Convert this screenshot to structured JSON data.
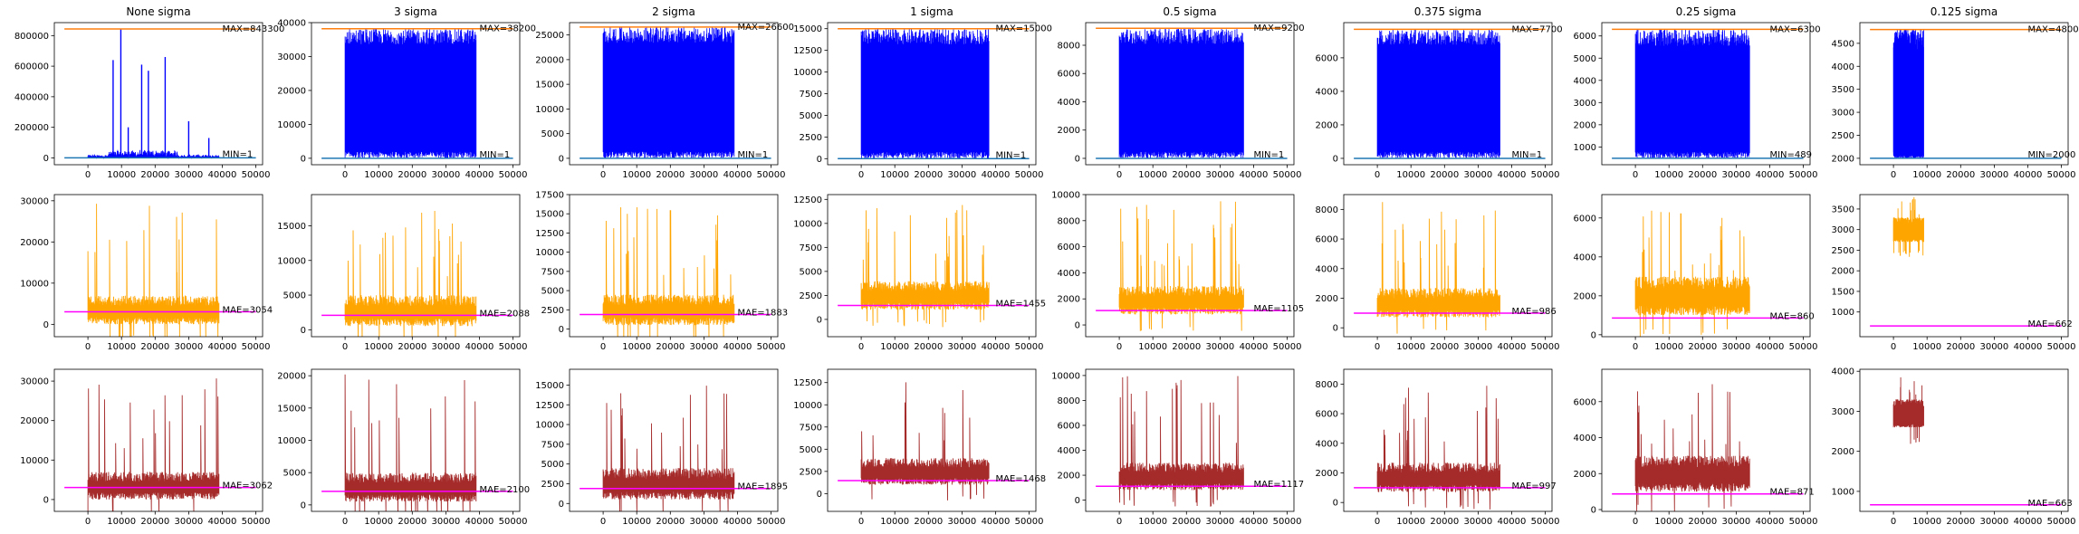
{
  "colors": {
    "row1_signal": "#0000ff",
    "row2_signal": "#ffa500",
    "row3_signal": "#a52a2a",
    "max_line": "#ff7f0e",
    "min_line": "#1f77b4",
    "mae_line": "#ff00ff"
  },
  "panels": [
    {
      "title": "None sigma",
      "n": 39000,
      "r1": {
        "ylim": [
          -45000,
          885000
        ],
        "yticks": [
          0,
          200000,
          400000,
          600000,
          800000
        ],
        "max": 843300,
        "min": 1,
        "max_label": "MAX=843300",
        "min_label": "MIN=1",
        "base": 15000,
        "noise": 15000,
        "spikes": [
          [
            7500,
            640000
          ],
          [
            9800,
            843300
          ],
          [
            12000,
            200000
          ],
          [
            16000,
            610000
          ],
          [
            18000,
            570000
          ],
          [
            23000,
            660000
          ],
          [
            30000,
            240000
          ],
          [
            36000,
            130000
          ]
        ]
      },
      "r2": {
        "ylim": [
          -3000,
          31500
        ],
        "yticks": [
          0,
          10000,
          20000,
          30000
        ],
        "mae": 3054,
        "mae_label": "MAE=3054",
        "low": 0,
        "high": 7000,
        "spikes": 30000
      },
      "r3": {
        "ylim": [
          -3000,
          33000
        ],
        "yticks": [
          0,
          10000,
          20000,
          30000
        ],
        "mae": 3062,
        "mae_label": "MAE=3062",
        "low": 0,
        "high": 7000,
        "spikes": 31500
      }
    },
    {
      "title": "3 sigma",
      "n": 39000,
      "r1": {
        "ylim": [
          -1900,
          40000
        ],
        "yticks": [
          0,
          10000,
          20000,
          30000,
          40000
        ],
        "max": 38200,
        "min": 1,
        "max_label": "MAX=38200",
        "min_label": "MIN=1",
        "base": 3000,
        "noise": 38200,
        "spikes": []
      },
      "r2": {
        "ylim": [
          -1000,
          19500
        ],
        "yticks": [
          0,
          5000,
          10000,
          15000
        ],
        "mae": 2088,
        "mae_label": "MAE=2088",
        "low": 500,
        "high": 5000,
        "spikes": 18500
      },
      "r3": {
        "ylim": [
          -1000,
          21000
        ],
        "yticks": [
          0,
          5000,
          10000,
          15000,
          20000
        ],
        "mae": 2100,
        "mae_label": "MAE=2100",
        "low": 500,
        "high": 5000,
        "spikes": 20500
      }
    },
    {
      "title": "2 sigma",
      "n": 39000,
      "r1": {
        "ylim": [
          -1300,
          27500
        ],
        "yticks": [
          0,
          5000,
          10000,
          15000,
          20000,
          25000
        ],
        "max": 26600,
        "min": 1,
        "max_label": "MAX=26600",
        "min_label": "MIN=1",
        "base": 3000,
        "noise": 26600,
        "spikes": []
      },
      "r2": {
        "ylim": [
          -1000,
          17500
        ],
        "yticks": [
          0,
          2500,
          5000,
          7500,
          10000,
          12500,
          15000,
          17500
        ],
        "mae": 1883,
        "mae_label": "MAE=1883",
        "low": 500,
        "high": 4500,
        "spikes": 16500
      },
      "r3": {
        "ylim": [
          -1000,
          17000
        ],
        "yticks": [
          0,
          2500,
          5000,
          7500,
          10000,
          12500,
          15000
        ],
        "mae": 1895,
        "mae_label": "MAE=1895",
        "low": 500,
        "high": 4500,
        "spikes": 16200
      }
    },
    {
      "title": "1 sigma",
      "n": 38000,
      "r1": {
        "ylim": [
          -700,
          15700
        ],
        "yticks": [
          0,
          2500,
          5000,
          7500,
          10000,
          12500,
          15000
        ],
        "max": 15000,
        "min": 1,
        "max_label": "MAX=15000",
        "min_label": "MIN=1",
        "base": 3000,
        "noise": 15000,
        "spikes": []
      },
      "r2": {
        "ylim": [
          -1800,
          13000
        ],
        "yticks": [
          0,
          2500,
          5000,
          7500,
          10000,
          12500
        ],
        "mae": 1455,
        "mae_label": "MAE=1455",
        "low": 1000,
        "high": 4000,
        "spikes": 12000
      },
      "r3": {
        "ylim": [
          -2000,
          14000
        ],
        "yticks": [
          0,
          2500,
          5000,
          7500,
          10000,
          12500
        ],
        "mae": 1468,
        "mae_label": "MAE=1468",
        "low": 1000,
        "high": 4000,
        "spikes": 13000
      }
    },
    {
      "title": "0.5 sigma",
      "n": 37000,
      "r1": {
        "ylim": [
          -450,
          9600
        ],
        "yticks": [
          0,
          2000,
          4000,
          6000,
          8000
        ],
        "max": 9200,
        "min": 1,
        "max_label": "MAX=9200",
        "min_label": "MIN=1",
        "base": 2000,
        "noise": 9200,
        "spikes": []
      },
      "r2": {
        "ylim": [
          -900,
          10000
        ],
        "yticks": [
          0,
          2000,
          4000,
          6000,
          8000,
          10000
        ],
        "mae": 1105,
        "mae_label": "MAE=1105",
        "low": 800,
        "high": 3000,
        "spikes": 9500
      },
      "r3": {
        "ylim": [
          -900,
          10500
        ],
        "yticks": [
          0,
          2000,
          4000,
          6000,
          8000,
          10000
        ],
        "mae": 1117,
        "mae_label": "MAE=1117",
        "low": 800,
        "high": 3000,
        "spikes": 10000
      }
    },
    {
      "title": "0.375 sigma",
      "n": 36500,
      "r1": {
        "ylim": [
          -380,
          8100
        ],
        "yticks": [
          0,
          2000,
          4000,
          6000
        ],
        "max": 7700,
        "min": 1,
        "max_label": "MAX=7700",
        "min_label": "MIN=1",
        "base": 1500,
        "noise": 7700,
        "spikes": []
      },
      "r2": {
        "ylim": [
          -600,
          9000
        ],
        "yticks": [
          0,
          2000,
          4000,
          6000,
          8000
        ],
        "mae": 986,
        "mae_label": "MAE=986",
        "low": 700,
        "high": 2700,
        "spikes": 8500
      },
      "r3": {
        "ylim": [
          -600,
          9000
        ],
        "yticks": [
          0,
          2000,
          4000,
          6000,
          8000
        ],
        "mae": 997,
        "mae_label": "MAE=997",
        "low": 700,
        "high": 2700,
        "spikes": 8600
      }
    },
    {
      "title": "0.25 sigma",
      "n": 34000,
      "r1": {
        "ylim": [
          200,
          6600
        ],
        "yticks": [
          1000,
          2000,
          3000,
          4000,
          5000,
          6000
        ],
        "max": 6300,
        "min": 489,
        "max_label": "MAX=6300",
        "min_label": "MIN=489",
        "base": 1500,
        "noise": 6300,
        "spikes": []
      },
      "r2": {
        "ylim": [
          -100,
          7200
        ],
        "yticks": [
          0,
          2000,
          4000,
          6000
        ],
        "mae": 860,
        "mae_label": "MAE=860",
        "low": 1000,
        "high": 3000,
        "spikes": 6600
      },
      "r3": {
        "ylim": [
          -100,
          7800
        ],
        "yticks": [
          0,
          2000,
          4000,
          6000
        ],
        "mae": 871,
        "mae_label": "MAE=871",
        "low": 1000,
        "high": 3000,
        "spikes": 7500
      }
    },
    {
      "title": "0.125 sigma",
      "n": 9000,
      "r1": {
        "ylim": [
          1860,
          4950
        ],
        "yticks": [
          2000,
          2500,
          3000,
          3500,
          4000,
          4500
        ],
        "max": 4800,
        "min": 2000,
        "max_label": "MAX=4800",
        "min_label": "MIN=2000",
        "base": 2000,
        "noise": 4800,
        "spikes": []
      },
      "r2": {
        "ylim": [
          400,
          3850
        ],
        "yticks": [
          1000,
          1500,
          2000,
          2500,
          3000,
          3500
        ],
        "mae": 662,
        "mae_label": "MAE=662",
        "low": 2700,
        "high": 3300,
        "spikes": 3800
      },
      "r3": {
        "ylim": [
          500,
          4050
        ],
        "yticks": [
          1000,
          2000,
          3000,
          4000
        ],
        "mae": 663,
        "mae_label": "MAE=663",
        "low": 2600,
        "high": 3300,
        "spikes": 3900
      }
    }
  ],
  "chart_data": {
    "type": "line",
    "layout": "3 rows x 8 columns of subplots",
    "xlim": [
      -10000,
      52000
    ],
    "xticks": [
      0,
      10000,
      20000,
      30000,
      40000,
      50000
    ],
    "columns": [
      "None sigma",
      "3 sigma",
      "2 sigma",
      "1 sigma",
      "0.5 sigma",
      "0.375 sigma",
      "0.25 sigma",
      "0.125 sigma"
    ],
    "row1": {
      "series_color": "blue",
      "max_values": [
        843300,
        38200,
        26600,
        15000,
        9200,
        7700,
        6300,
        4800
      ],
      "min_values": [
        1,
        1,
        1,
        1,
        1,
        1,
        489,
        2000
      ]
    },
    "row2": {
      "series_color": "orange",
      "mae_values": [
        3054,
        2088,
        1883,
        1455,
        1105,
        986,
        860,
        662
      ]
    },
    "row3": {
      "series_color": "brown",
      "mae_values": [
        3062,
        2100,
        1895,
        1468,
        1117,
        997,
        871,
        663
      ]
    },
    "grid": false,
    "legend": "none"
  }
}
